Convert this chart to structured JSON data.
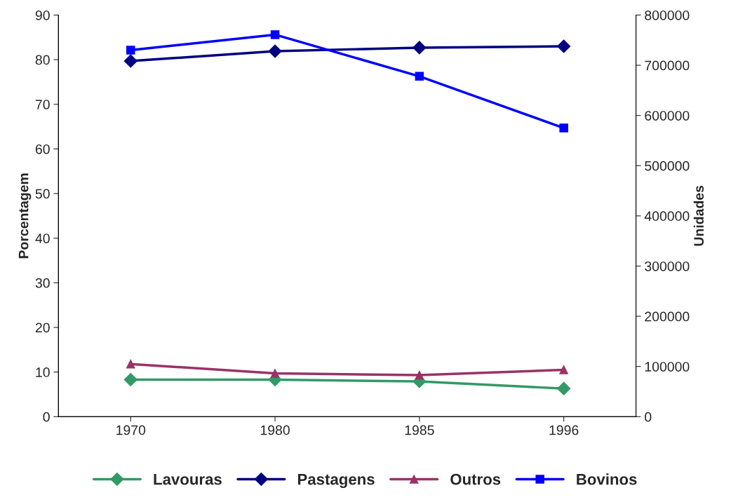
{
  "chart_data": {
    "type": "line",
    "ylabel": "Porcentagem",
    "y2label": "Unidades",
    "categories": [
      "1970",
      "1980",
      "1985",
      "1996"
    ],
    "ylim": [
      0,
      90
    ],
    "yticks": [
      0,
      10,
      20,
      30,
      40,
      50,
      60,
      70,
      80,
      90
    ],
    "y2lim": [
      0,
      800000
    ],
    "y2ticks": [
      0,
      100000,
      200000,
      300000,
      400000,
      500000,
      600000,
      700000,
      800000
    ],
    "grid": false,
    "legend": "bottom",
    "line_style": "solid",
    "series": [
      {
        "name": "Lavouras",
        "color": "#339966",
        "marker": "diamond",
        "values": [
          8.3,
          8.3,
          7.9,
          6.3
        ]
      },
      {
        "name": "Pastagens",
        "color": "#000080",
        "marker": "diamond",
        "values": [
          79.7,
          81.9,
          82.7,
          83.0
        ]
      },
      {
        "name": "Outros",
        "color": "#993366",
        "marker": "triangle",
        "values": [
          11.8,
          9.7,
          9.3,
          10.5
        ]
      },
      {
        "name": "Bovinos",
        "color": "#0000ff",
        "marker": "square",
        "axis": "y2",
        "values": [
          730000,
          761000,
          678000,
          575000
        ]
      }
    ]
  }
}
